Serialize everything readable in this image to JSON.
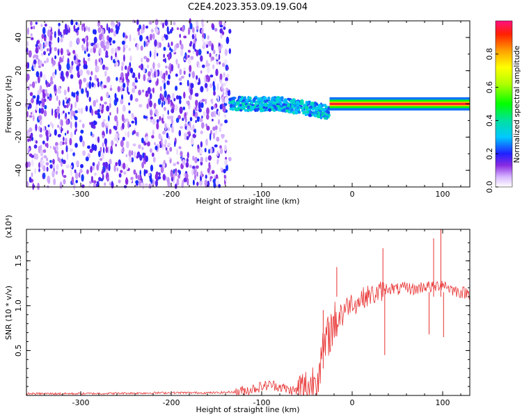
{
  "title": "C2E4.2023.353.09.19.G04",
  "chart_data": [
    {
      "type": "heatmap",
      "xlabel": "Height of straight line (km)",
      "ylabel": "Frequency (Hz)",
      "xlim": [
        -360,
        130
      ],
      "ylim": [
        -50,
        50
      ],
      "xticks": [
        -300,
        -200,
        -100,
        0,
        100
      ],
      "yticks": [
        -40,
        -20,
        0,
        20,
        40
      ],
      "colorbar": {
        "label": "Normalized spectral amplitude",
        "range": [
          0.0,
          1.0
        ],
        "ticks": [
          0.0,
          0.2,
          0.4,
          0.6,
          0.8
        ],
        "tick_labels": [
          "0.0",
          "0.2",
          "0.4",
          "0.6",
          "0.8"
        ]
      },
      "features": [
        {
          "x_range": [
            -360,
            -135
          ],
          "y_range": [
            -50,
            50
          ],
          "amplitude": [
            0.05,
            0.22
          ]
        },
        {
          "x_range": [
            -135,
            -25
          ],
          "y_center": [
            0,
            -5
          ],
          "y_halfwidth": 4,
          "amplitude": [
            0.2,
            0.4
          ]
        },
        {
          "x_range": [
            -25,
            130
          ],
          "y_center": 0,
          "y_halfwidth": 1,
          "amplitude": [
            0.85,
            1.0
          ]
        }
      ]
    },
    {
      "type": "line",
      "xlabel": "Height of straight line (km)",
      "ylabel": "SNR (10 * v/v)",
      "y_multiplier_label": "(x10⁴)",
      "xlim": [
        -360,
        130
      ],
      "ylim": [
        0,
        1.85
      ],
      "xticks": [
        -300,
        -200,
        -100,
        0,
        100
      ],
      "yticks": [
        0.5,
        1.0,
        1.5
      ],
      "ytick_labels": [
        "0.5",
        "1.0",
        "1.5"
      ],
      "series": [
        {
          "color": "#e83030",
          "x": [
            -360,
            -300,
            -200,
            -150,
            -130,
            -115,
            -100,
            -90,
            -80,
            -70,
            -60,
            -50,
            -45,
            -40,
            -35,
            -30,
            -25,
            -20,
            -15,
            -10,
            -5,
            0,
            5,
            10,
            15,
            20,
            25,
            30,
            35,
            40,
            50,
            60,
            70,
            80,
            90,
            100,
            110,
            120,
            130
          ],
          "y": [
            0.02,
            0.02,
            0.03,
            0.03,
            0.04,
            0.06,
            0.1,
            0.12,
            0.1,
            0.06,
            0.05,
            0.08,
            0.12,
            0.2,
            0.35,
            0.55,
            0.7,
            0.8,
            0.88,
            0.95,
            1.0,
            1.05,
            1.02,
            1.08,
            1.1,
            1.12,
            1.12,
            1.15,
            1.18,
            1.2,
            1.18,
            1.2,
            1.18,
            1.22,
            1.2,
            1.25,
            1.18,
            1.15,
            1.14
          ]
        }
      ],
      "spikes": [
        {
          "x": -17,
          "y": 1.43
        },
        {
          "x": -32,
          "y": 0.95
        },
        {
          "x": 34,
          "y": 1.64
        },
        {
          "x": 36,
          "y": 0.45
        },
        {
          "x": 90,
          "y": 1.75
        },
        {
          "x": 98,
          "y": 1.86
        },
        {
          "x": 101,
          "y": 0.65
        },
        {
          "x": 85,
          "y": 0.68
        }
      ]
    }
  ]
}
